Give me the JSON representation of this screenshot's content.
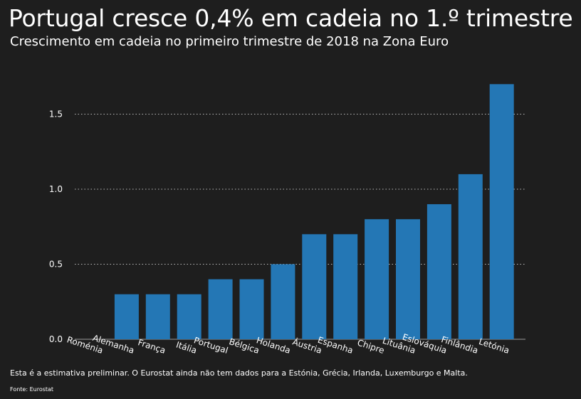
{
  "title": "Portugal cresce 0,4% em cadeia no 1.º trimestre",
  "subtitle": "Crescimento em cadeia no primeiro trimestre de 2018 na Zona Euro",
  "note": "Esta é a estimativa preliminar. O Eurostat ainda não tem dados para a Estónia, Grécia, Irlanda, Luxemburgo e Malta.",
  "source": "Fonte: Eurostat",
  "colors": {
    "background": "#1e1e1e",
    "bar": "#2477b5",
    "text": "#ffffff",
    "grid": "#bbbbbb"
  },
  "chart_data": {
    "type": "bar",
    "categories": [
      "Roménia",
      "Alemanha",
      "França",
      "Itália",
      "Portugal",
      "Bélgica",
      "Holanda",
      "Áustria",
      "Espanha",
      "Chipre",
      "Lituânia",
      "Eslováquia",
      "Finlândia",
      "Letónia"
    ],
    "values": [
      0.0,
      0.3,
      0.3,
      0.3,
      0.4,
      0.4,
      0.5,
      0.7,
      0.7,
      0.8,
      0.8,
      0.9,
      1.1,
      1.7
    ],
    "yticks": [
      "0.0",
      "0.5",
      "1.0",
      "1.5"
    ],
    "ytick_values": [
      0,
      0.5,
      1.0,
      1.5
    ],
    "ylim": [
      0,
      1.8
    ],
    "grid": "dotted horizontal",
    "xtick_rotation": "angled"
  }
}
